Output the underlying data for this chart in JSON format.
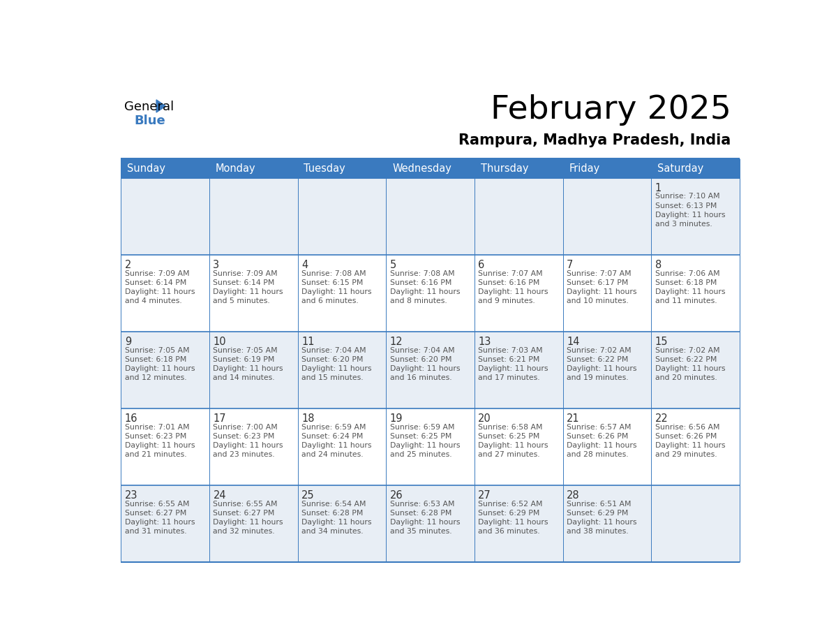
{
  "title": "February 2025",
  "subtitle": "Rampura, Madhya Pradesh, India",
  "header_bg_color": "#3a7abf",
  "header_text_color": "#ffffff",
  "days_of_week": [
    "Sunday",
    "Monday",
    "Tuesday",
    "Wednesday",
    "Thursday",
    "Friday",
    "Saturday"
  ],
  "cell_bg_row0": "#e8eef5",
  "cell_bg_row1": "#ffffff",
  "cell_bg_row2": "#e8eef5",
  "cell_bg_row3": "#ffffff",
  "cell_bg_row4": "#e8eef5",
  "grid_line_color": "#3a7abf",
  "text_color": "#555555",
  "day_number_color": "#333333",
  "calendar_data": [
    [
      null,
      null,
      null,
      null,
      null,
      null,
      {
        "day": "1",
        "sunrise": "7:10 AM",
        "sunset": "6:13 PM",
        "daylight": "11 hours\nand 3 minutes."
      }
    ],
    [
      {
        "day": "2",
        "sunrise": "7:09 AM",
        "sunset": "6:14 PM",
        "daylight": "11 hours\nand 4 minutes."
      },
      {
        "day": "3",
        "sunrise": "7:09 AM",
        "sunset": "6:14 PM",
        "daylight": "11 hours\nand 5 minutes."
      },
      {
        "day": "4",
        "sunrise": "7:08 AM",
        "sunset": "6:15 PM",
        "daylight": "11 hours\nand 6 minutes."
      },
      {
        "day": "5",
        "sunrise": "7:08 AM",
        "sunset": "6:16 PM",
        "daylight": "11 hours\nand 8 minutes."
      },
      {
        "day": "6",
        "sunrise": "7:07 AM",
        "sunset": "6:16 PM",
        "daylight": "11 hours\nand 9 minutes."
      },
      {
        "day": "7",
        "sunrise": "7:07 AM",
        "sunset": "6:17 PM",
        "daylight": "11 hours\nand 10 minutes."
      },
      {
        "day": "8",
        "sunrise": "7:06 AM",
        "sunset": "6:18 PM",
        "daylight": "11 hours\nand 11 minutes."
      }
    ],
    [
      {
        "day": "9",
        "sunrise": "7:05 AM",
        "sunset": "6:18 PM",
        "daylight": "11 hours\nand 12 minutes."
      },
      {
        "day": "10",
        "sunrise": "7:05 AM",
        "sunset": "6:19 PM",
        "daylight": "11 hours\nand 14 minutes."
      },
      {
        "day": "11",
        "sunrise": "7:04 AM",
        "sunset": "6:20 PM",
        "daylight": "11 hours\nand 15 minutes."
      },
      {
        "day": "12",
        "sunrise": "7:04 AM",
        "sunset": "6:20 PM",
        "daylight": "11 hours\nand 16 minutes."
      },
      {
        "day": "13",
        "sunrise": "7:03 AM",
        "sunset": "6:21 PM",
        "daylight": "11 hours\nand 17 minutes."
      },
      {
        "day": "14",
        "sunrise": "7:02 AM",
        "sunset": "6:22 PM",
        "daylight": "11 hours\nand 19 minutes."
      },
      {
        "day": "15",
        "sunrise": "7:02 AM",
        "sunset": "6:22 PM",
        "daylight": "11 hours\nand 20 minutes."
      }
    ],
    [
      {
        "day": "16",
        "sunrise": "7:01 AM",
        "sunset": "6:23 PM",
        "daylight": "11 hours\nand 21 minutes."
      },
      {
        "day": "17",
        "sunrise": "7:00 AM",
        "sunset": "6:23 PM",
        "daylight": "11 hours\nand 23 minutes."
      },
      {
        "day": "18",
        "sunrise": "6:59 AM",
        "sunset": "6:24 PM",
        "daylight": "11 hours\nand 24 minutes."
      },
      {
        "day": "19",
        "sunrise": "6:59 AM",
        "sunset": "6:25 PM",
        "daylight": "11 hours\nand 25 minutes."
      },
      {
        "day": "20",
        "sunrise": "6:58 AM",
        "sunset": "6:25 PM",
        "daylight": "11 hours\nand 27 minutes."
      },
      {
        "day": "21",
        "sunrise": "6:57 AM",
        "sunset": "6:26 PM",
        "daylight": "11 hours\nand 28 minutes."
      },
      {
        "day": "22",
        "sunrise": "6:56 AM",
        "sunset": "6:26 PM",
        "daylight": "11 hours\nand 29 minutes."
      }
    ],
    [
      {
        "day": "23",
        "sunrise": "6:55 AM",
        "sunset": "6:27 PM",
        "daylight": "11 hours\nand 31 minutes."
      },
      {
        "day": "24",
        "sunrise": "6:55 AM",
        "sunset": "6:27 PM",
        "daylight": "11 hours\nand 32 minutes."
      },
      {
        "day": "25",
        "sunrise": "6:54 AM",
        "sunset": "6:28 PM",
        "daylight": "11 hours\nand 34 minutes."
      },
      {
        "day": "26",
        "sunrise": "6:53 AM",
        "sunset": "6:28 PM",
        "daylight": "11 hours\nand 35 minutes."
      },
      {
        "day": "27",
        "sunrise": "6:52 AM",
        "sunset": "6:29 PM",
        "daylight": "11 hours\nand 36 minutes."
      },
      {
        "day": "28",
        "sunrise": "6:51 AM",
        "sunset": "6:29 PM",
        "daylight": "11 hours\nand 38 minutes."
      },
      null
    ]
  ],
  "logo_text_general": "General",
  "logo_text_blue": "Blue",
  "logo_triangle_color": "#3a7abf"
}
